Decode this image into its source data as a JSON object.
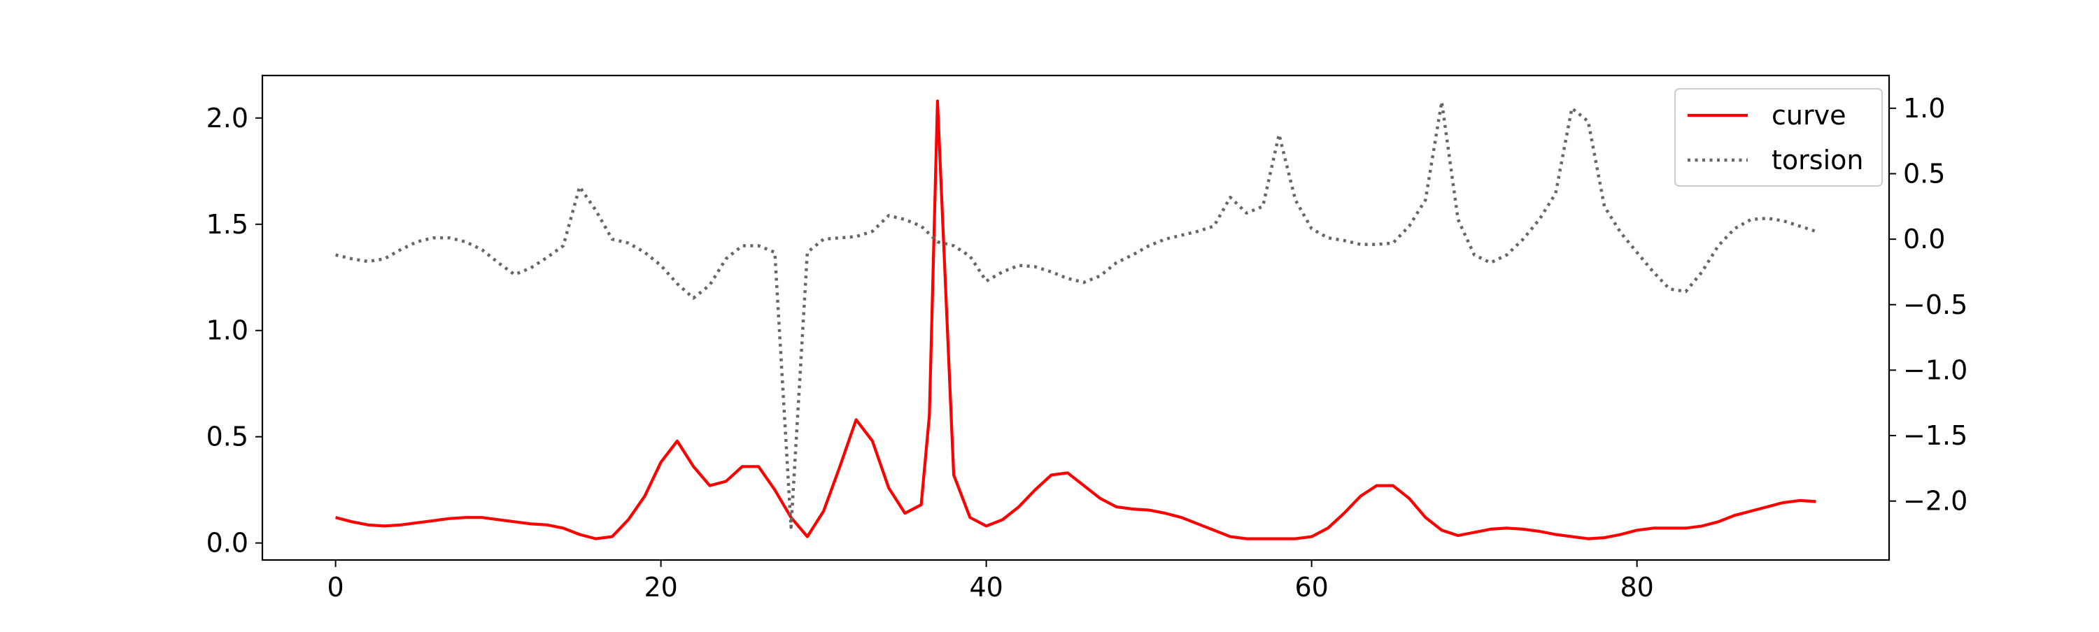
{
  "chart_data": {
    "type": "line",
    "title": "",
    "xlabel": "",
    "ylabel": "",
    "ylabel_right": "",
    "xlim": [
      -4.5,
      95.5
    ],
    "ylim_left": [
      -0.08,
      2.2
    ],
    "ylim_right": [
      -2.45,
      1.25
    ],
    "x_ticks": [
      0,
      20,
      40,
      60,
      80
    ],
    "y_ticks_left": [
      0.0,
      0.5,
      1.0,
      1.5,
      2.0
    ],
    "y_ticks_right": [
      -2.0,
      -1.5,
      -1.0,
      -0.5,
      0.0,
      0.5,
      1.0
    ],
    "y_tick_labels_left": [
      "0.0",
      "0.5",
      "1.0",
      "1.5",
      "2.0"
    ],
    "y_tick_labels_right": [
      "−2.0",
      "−1.5",
      "−1.0",
      "−0.5",
      "0.0",
      "0.5",
      "1.0"
    ],
    "grid": false,
    "legend_position": "top-right",
    "series": [
      {
        "name": "curve",
        "axis": "left",
        "color": "#ff0000",
        "style": "solid",
        "x": [
          0,
          1,
          2,
          3,
          4,
          5,
          6,
          7,
          8,
          9,
          10,
          11,
          12,
          13,
          14,
          15,
          16,
          17,
          18,
          19,
          20,
          21,
          22,
          23,
          24,
          25,
          26,
          27,
          28,
          29,
          30,
          31,
          32,
          33,
          34,
          35,
          36,
          36.5,
          37,
          38,
          39,
          40,
          41,
          42,
          43,
          44,
          45,
          46,
          47,
          48,
          49,
          50,
          51,
          52,
          53,
          54,
          55,
          56,
          57,
          58,
          59,
          60,
          61,
          62,
          63,
          64,
          65,
          66,
          67,
          68,
          69,
          70,
          71,
          72,
          73,
          74,
          75,
          76,
          77,
          78,
          79,
          80,
          81,
          82,
          83,
          84,
          85,
          86,
          87,
          88,
          89,
          90,
          91
        ],
        "values": [
          0.12,
          0.1,
          0.085,
          0.08,
          0.085,
          0.095,
          0.105,
          0.115,
          0.12,
          0.12,
          0.11,
          0.1,
          0.09,
          0.085,
          0.07,
          0.04,
          0.02,
          0.03,
          0.11,
          0.22,
          0.38,
          0.48,
          0.36,
          0.27,
          0.29,
          0.36,
          0.36,
          0.25,
          0.12,
          0.03,
          0.15,
          0.36,
          0.58,
          0.48,
          0.26,
          0.14,
          0.18,
          0.6,
          2.08,
          0.32,
          0.12,
          0.08,
          0.11,
          0.17,
          0.25,
          0.32,
          0.33,
          0.27,
          0.21,
          0.17,
          0.16,
          0.155,
          0.14,
          0.12,
          0.09,
          0.06,
          0.03,
          0.02,
          0.02,
          0.02,
          0.02,
          0.03,
          0.07,
          0.14,
          0.22,
          0.27,
          0.27,
          0.21,
          0.12,
          0.06,
          0.035,
          0.05,
          0.065,
          0.07,
          0.065,
          0.055,
          0.04,
          0.03,
          0.02,
          0.025,
          0.04,
          0.06,
          0.07,
          0.07,
          0.07,
          0.08,
          0.1,
          0.13,
          0.15,
          0.17,
          0.19,
          0.2,
          0.195
        ]
      },
      {
        "name": "torsion",
        "axis": "right",
        "color": "#666666",
        "style": "dotted",
        "x": [
          0,
          1,
          2,
          3,
          4,
          5,
          6,
          7,
          8,
          9,
          10,
          11,
          12,
          13,
          14,
          15,
          16,
          17,
          18,
          19,
          20,
          21,
          22,
          23,
          24,
          25,
          26,
          27,
          28,
          29,
          30,
          31,
          32,
          33,
          34,
          35,
          36,
          37,
          38,
          39,
          40,
          41,
          42,
          43,
          44,
          45,
          46,
          47,
          48,
          49,
          50,
          51,
          52,
          53,
          54,
          55,
          56,
          57,
          58,
          59,
          60,
          61,
          62,
          63,
          64,
          65,
          66,
          67,
          68,
          69,
          70,
          71,
          72,
          73,
          74,
          75,
          76,
          77,
          78,
          79,
          80,
          81,
          82,
          83,
          84,
          85,
          86,
          87,
          88,
          89,
          90,
          91
        ],
        "values": [
          -0.12,
          -0.15,
          -0.17,
          -0.15,
          -0.08,
          -0.02,
          0.01,
          0.01,
          -0.02,
          -0.08,
          -0.18,
          -0.27,
          -0.22,
          -0.14,
          -0.05,
          0.4,
          0.22,
          0.0,
          -0.03,
          -0.1,
          -0.2,
          -0.34,
          -0.45,
          -0.35,
          -0.15,
          -0.05,
          -0.05,
          -0.1,
          -2.2,
          -0.1,
          0.0,
          0.01,
          0.02,
          0.06,
          0.18,
          0.15,
          0.1,
          -0.02,
          -0.05,
          -0.13,
          -0.32,
          -0.25,
          -0.2,
          -0.21,
          -0.25,
          -0.3,
          -0.33,
          -0.28,
          -0.18,
          -0.12,
          -0.05,
          0.0,
          0.03,
          0.06,
          0.1,
          0.32,
          0.2,
          0.25,
          0.8,
          0.3,
          0.08,
          0.01,
          -0.01,
          -0.04,
          -0.04,
          -0.03,
          0.1,
          0.3,
          1.05,
          0.15,
          -0.12,
          -0.18,
          -0.12,
          0.0,
          0.15,
          0.35,
          1.0,
          0.9,
          0.25,
          0.05,
          -0.1,
          -0.25,
          -0.38,
          -0.4,
          -0.25,
          -0.05,
          0.08,
          0.15,
          0.16,
          0.14,
          0.1,
          0.06
        ]
      }
    ]
  }
}
